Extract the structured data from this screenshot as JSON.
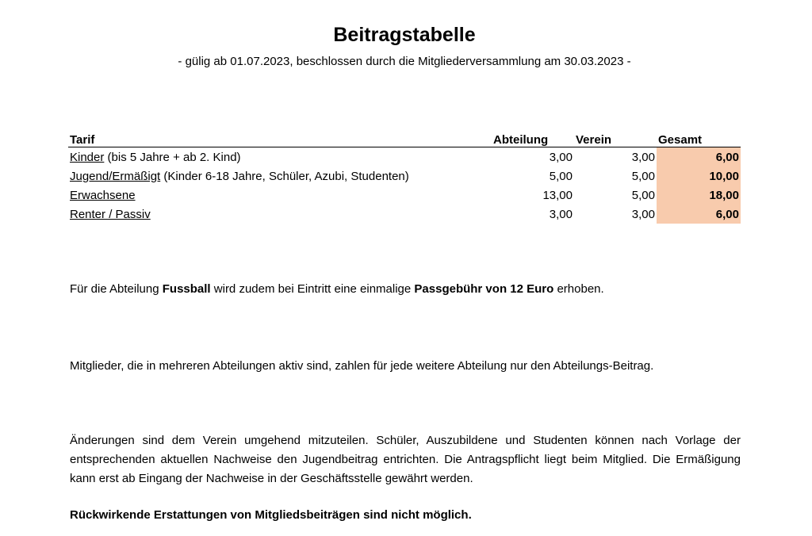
{
  "document": {
    "title": "Beitragstabelle",
    "subtitle": "- gülig ab 01.07.2023, beschlossen durch die Mitgliederversammlung am 30.03.2023 -"
  },
  "table": {
    "headers": {
      "tarif": "Tarif",
      "abteilung": "Abteilung",
      "verein": "Verein",
      "gesamt": "Gesamt"
    },
    "rows": [
      {
        "name": "Kinder",
        "detail": " (bis 5 Jahre + ab 2. Kind)",
        "abteilung": "3,00",
        "verein": "3,00",
        "gesamt": "6,00"
      },
      {
        "name": "Jugend/Ermäßigt",
        "detail": " (Kinder 6-18 Jahre, Schüler, Azubi, Studenten)",
        "abteilung": "5,00",
        "verein": "5,00",
        "gesamt": "10,00"
      },
      {
        "name": "Erwachsene",
        "detail": "",
        "abteilung": "13,00",
        "verein": "5,00",
        "gesamt": "18,00"
      },
      {
        "name": "Renter / Passiv",
        "detail": "",
        "abteilung": "3,00",
        "verein": "3,00",
        "gesamt": "6,00"
      }
    ],
    "highlight_color": "#f8cbad"
  },
  "notes": {
    "fussball": {
      "t1": "Für die Abteilung ",
      "b1": "Fussball",
      "t2": " wird zudem bei Eintritt eine einmalige ",
      "b2": "Passgebühr von 12 Euro",
      "t3": " erhoben."
    },
    "mehrere": "Mitglieder, die in mehreren Abteilungen aktiv sind, zahlen für jede weitere Abteilung nur den Abteilungs-Beitrag.",
    "aenderungen": "Änderungen sind dem Verein umgehend mitzuteilen. Schüler, Auszubildene und Studenten können nach Vorlage der entsprechenden aktuellen Nachweise den Jugendbeitrag entrichten. Die Antragspflicht liegt beim Mitglied. Die Ermäßigung kann erst ab Eingang der Nachweise in der Geschäftsstelle gewährt werden.",
    "rueckwirkend": "Rückwirkende Erstattungen von Mitgliedsbeiträgen sind nicht möglich."
  }
}
